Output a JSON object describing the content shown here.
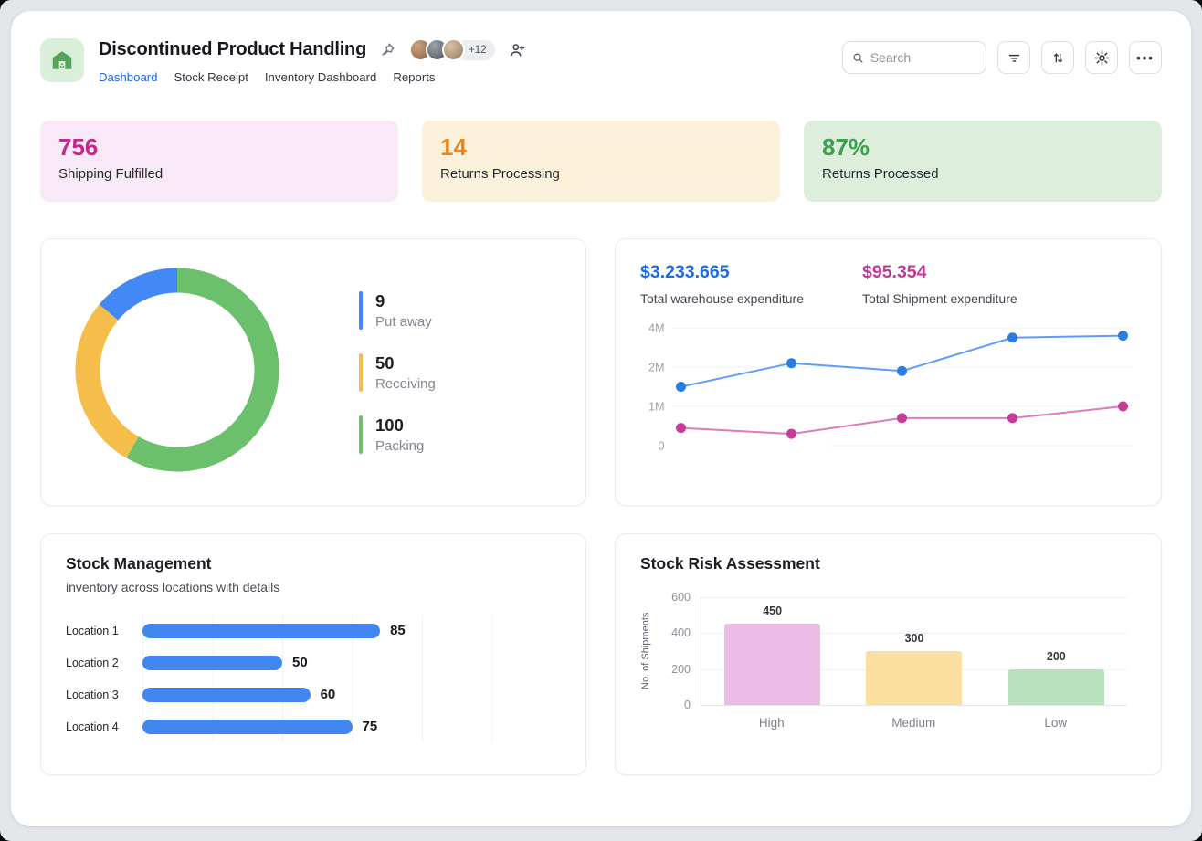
{
  "colors": {
    "frame_bg": "#e3e7ea",
    "accent_blue": "#1b6ae3",
    "bar_blue": "#4287f0"
  },
  "icons": {
    "app": "warehouse-icon",
    "pin": "pushpin-icon",
    "invite": "add-user-icon",
    "search": "search-icon",
    "filter": "filter-lines-icon",
    "sort": "sort-arrows-icon",
    "settings": "gear-icon",
    "more": "ellipsis-icon"
  },
  "header": {
    "title": "Discontinued Product Handling",
    "avatars_extra": "+12",
    "tabs": [
      {
        "label": "Dashboard",
        "active": true
      },
      {
        "label": "Stock Receipt",
        "active": false
      },
      {
        "label": "Inventory Dashboard",
        "active": false
      },
      {
        "label": "Reports",
        "active": false
      }
    ],
    "search_placeholder": "Search",
    "more_label": "•••"
  },
  "stats": [
    {
      "value": "756",
      "label": "Shipping Fulfilled",
      "color": "#c02a8e",
      "bg": "#f9e8f6"
    },
    {
      "value": "14",
      "label": "Returns Processing",
      "color": "#e8871e",
      "bg": "#fbf0da"
    },
    {
      "value": "87%",
      "label": "Returns Processed",
      "color": "#3da04b",
      "bg": "#ddefdc"
    }
  ],
  "chart_data": [
    {
      "id": "putaway-donut",
      "type": "pie",
      "donut": true,
      "segments": [
        {
          "label": "Put away",
          "value": 9,
          "color": "#4289f5",
          "sweep_deg": 50
        },
        {
          "label": "Receiving",
          "value": 50,
          "color": "#f5bd4a",
          "sweep_deg": 100
        },
        {
          "label": "Packing",
          "value": 100,
          "color": "#6cbf6b",
          "sweep_deg": 210
        }
      ]
    },
    {
      "id": "expenditure-lines",
      "type": "line",
      "yticks": [
        {
          "label": "4M",
          "value": 4
        },
        {
          "label": "2M",
          "value": 2
        },
        {
          "label": "1M",
          "value": 1
        },
        {
          "label": "0",
          "value": 0
        }
      ],
      "series": [
        {
          "name": "Total warehouse expenditure",
          "total": "$3.233.665",
          "color": "#5f9df6",
          "dot_color": "#2d7ce2",
          "values_millions": [
            1.5,
            2.2,
            1.9,
            3.5,
            3.6
          ]
        },
        {
          "name": "Total Shipment expenditure",
          "total": "$95.354",
          "color": "#dc7cbc",
          "dot_color": "#c33d98",
          "values_millions": [
            0.45,
            0.3,
            0.7,
            0.7,
            1.0
          ]
        }
      ],
      "grid": true,
      "legend_position": "top"
    },
    {
      "id": "stock-management",
      "type": "bar",
      "orientation": "horizontal",
      "title": "Stock Management",
      "subtitle": "inventory across locations with details",
      "categories": [
        "Location 1",
        "Location 2",
        "Location 3",
        "Location 4"
      ],
      "values": [
        85,
        50,
        60,
        75
      ],
      "bar_color": "#4287f0",
      "xlim": [
        0,
        150
      ],
      "grid_step": 25
    },
    {
      "id": "stock-risk",
      "type": "bar",
      "orientation": "vertical",
      "title": "Stock Risk Assessment",
      "ylabel": "No. of Shipments",
      "categories": [
        "High",
        "Medium",
        "Low"
      ],
      "values": [
        450,
        300,
        200
      ],
      "colors": [
        "#ecbce6",
        "#fbdf9e",
        "#b8e0ba"
      ],
      "yticks": [
        600,
        400,
        200,
        0
      ],
      "ylim": [
        0,
        600
      ]
    }
  ]
}
